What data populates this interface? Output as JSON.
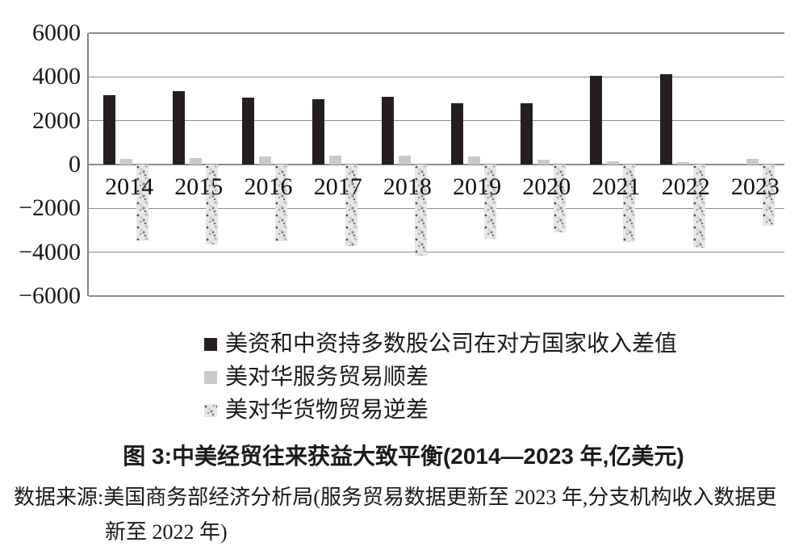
{
  "figure": {
    "title": "图 3:中美经贸往来获益大致平衡(2014—2023 年,亿美元)",
    "source_line1": "数据来源:美国商务部经济分析局(服务贸易数据更新至 2023 年,分支机构收入数据更",
    "source_line2": "新至 2022 年)"
  },
  "colors": {
    "income_diff_bar": "#231f20",
    "services_surplus_bar": "#c9c9c9",
    "goods_deficit_bar_base": "#e7e7e7",
    "gridline": "#8c8c8c",
    "text": "#1a1a1a"
  },
  "chart_data": {
    "type": "bar",
    "title": "图 3:中美经贸往来获益大致平衡(2014—2023 年,亿美元)",
    "unit": "亿美元",
    "categories": [
      "2014",
      "2015",
      "2016",
      "2017",
      "2018",
      "2019",
      "2020",
      "2021",
      "2022",
      "2023"
    ],
    "series": [
      {
        "name": "美资和中资持多数股公司在对方国家收入差值",
        "style": "solid-black",
        "color": "#231f20",
        "values": [
          3150,
          3340,
          3070,
          2980,
          3100,
          2800,
          2810,
          4050,
          4130,
          null
        ]
      },
      {
        "name": "美对华服务贸易顺差",
        "style": "solid-lightgray",
        "color": "#c9c9c9",
        "values": [
          250,
          280,
          370,
          390,
          400,
          360,
          230,
          150,
          120,
          270
        ]
      },
      {
        "name": "美对华货物贸易逆差",
        "style": "speckled",
        "color": "#e7e7e7",
        "values": [
          -3450,
          -3650,
          -3480,
          -3700,
          -4150,
          -3400,
          -3100,
          -3550,
          -3800,
          -2800
        ]
      }
    ],
    "ylim": [
      -6000,
      6000
    ],
    "yticks": [
      6000,
      4000,
      2000,
      0,
      -2000,
      -4000,
      -6000
    ],
    "ytick_labels": [
      "6000",
      "4000",
      "2000",
      "0",
      "−2000",
      "−4000",
      "−6000"
    ],
    "xlabel": "",
    "ylabel": "",
    "grid": true,
    "legend_position": "below"
  }
}
